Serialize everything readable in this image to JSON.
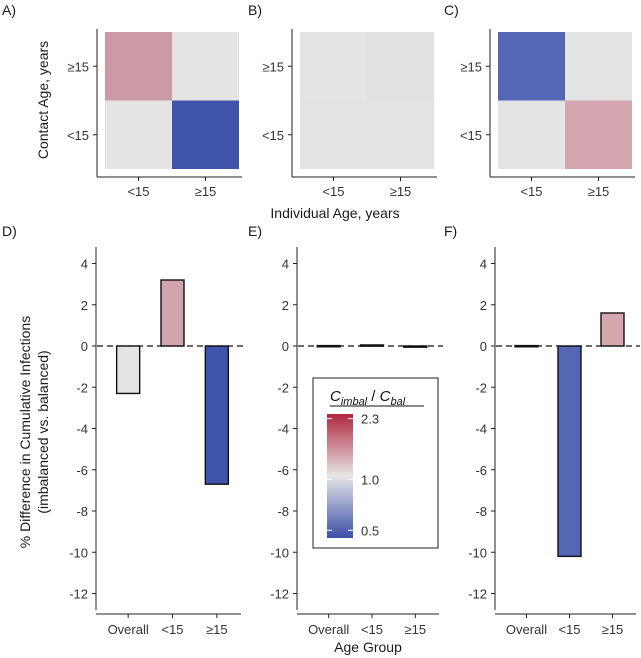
{
  "chart_data": [
    {
      "panel": "A)",
      "type": "heatmap",
      "x_categories": [
        "<15",
        "≥15"
      ],
      "y_categories": [
        "<15",
        "≥15"
      ],
      "cells": [
        {
          "x": "<15",
          "y": "≥15",
          "color": "#cc9aa6"
        },
        {
          "x": "≥15",
          "y": "≥15",
          "color": "#e4e4e4"
        },
        {
          "x": "<15",
          "y": "<15",
          "color": "#e4e4e4"
        },
        {
          "x": "≥15",
          "y": "<15",
          "color": "#3f54aa"
        }
      ]
    },
    {
      "panel": "B)",
      "type": "heatmap",
      "x_categories": [
        "<15",
        "≥15"
      ],
      "y_categories": [
        "<15",
        "≥15"
      ],
      "cells": [
        {
          "x": "<15",
          "y": "≥15",
          "color": "#e4e4e4"
        },
        {
          "x": "≥15",
          "y": "≥15",
          "color": "#e2e2e3"
        },
        {
          "x": "<15",
          "y": "<15",
          "color": "#e3e3e4"
        },
        {
          "x": "≥15",
          "y": "<15",
          "color": "#e3e3e4"
        }
      ]
    },
    {
      "panel": "C)",
      "type": "heatmap",
      "x_categories": [
        "<15",
        "≥15"
      ],
      "y_categories": [
        "<15",
        "≥15"
      ],
      "cells": [
        {
          "x": "<15",
          "y": "≥15",
          "color": "#5566b4"
        },
        {
          "x": "≥15",
          "y": "≥15",
          "color": "#e4e4e4"
        },
        {
          "x": "<15",
          "y": "<15",
          "color": "#e4e4e4"
        },
        {
          "x": "≥15",
          "y": "<15",
          "color": "#d4a6b0"
        }
      ]
    },
    {
      "panel": "D)",
      "type": "bar",
      "categories": [
        "Overall",
        "<15",
        "≥15"
      ],
      "values": [
        -2.3,
        3.2,
        -6.7
      ],
      "colors": [
        "#e4e4e4",
        "#d2a4ae",
        "#3f54aa"
      ],
      "ylim": [
        -12.8,
        4.8
      ],
      "yticks": [
        4,
        2,
        0,
        -2,
        -4,
        -6,
        -8,
        -10,
        -12
      ]
    },
    {
      "panel": "E)",
      "type": "bar",
      "categories": [
        "Overall",
        "<15",
        "≥15"
      ],
      "values": [
        0.02,
        0.05,
        -0.03
      ],
      "colors": [
        "#e4e4e4",
        "#e4e4e4",
        "#e4e4e4"
      ],
      "ylim": [
        -12.8,
        4.8
      ],
      "yticks": [
        4,
        2,
        0,
        -2,
        -4,
        -6,
        -8,
        -10,
        -12
      ]
    },
    {
      "panel": "F)",
      "type": "bar",
      "categories": [
        "Overall",
        "<15",
        "≥15"
      ],
      "values": [
        0.02,
        -10.2,
        1.6
      ],
      "colors": [
        "#e4e4e4",
        "#5566b4",
        "#d4a6b0"
      ],
      "ylim": [
        -12.8,
        4.8
      ],
      "yticks": [
        4,
        2,
        0,
        -2,
        -4,
        -6,
        -8,
        -10,
        -12
      ]
    }
  ],
  "heatmap_axes": {
    "xlabel": "Individual Age, years",
    "ylabel": "Contact Age, years"
  },
  "bar_axes": {
    "xlabel": "Age Group",
    "ylabel_line1": "% Difference in Cumulative Infections",
    "ylabel_line2": "(imbalanced vs. balanced)"
  },
  "legend": {
    "title_main_1": "C",
    "title_sub_1": "imbal",
    "title_sep": " / ",
    "title_main_2": "C",
    "title_sub_2": "bal",
    "ticks": [
      {
        "label": "2.3",
        "value": 2.3
      },
      {
        "label": "1.0",
        "value": 1.0
      },
      {
        "label": "0.5",
        "value": 0.5
      }
    ],
    "gradient": [
      "#3b4fa6",
      "#e6e6e6",
      "#b0283f"
    ]
  }
}
